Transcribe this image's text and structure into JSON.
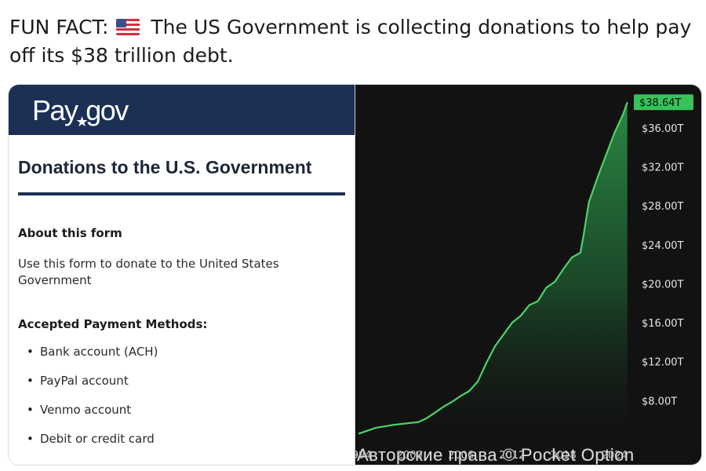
{
  "post": {
    "prefix": "FUN FACT:",
    "flag_icon": "us-flag-icon",
    "message": "The US Government is collecting donations to help pay off its $38 trillion debt."
  },
  "payform": {
    "brand_text": "Pay",
    "brand_text_2": "gov",
    "title": "Donations to the U.S. Government",
    "about_heading": "About this form",
    "about_text": "Use this form to donate to the United States Government",
    "methods_heading": "Accepted Payment Methods:",
    "methods": [
      "Bank account (ACH)",
      "PayPal account",
      "Venmo account",
      "Debit or credit card"
    ],
    "colors": {
      "brand_bar": "#1c3056"
    }
  },
  "watermark": "Авторские права © Pocket Option",
  "chart_data": {
    "type": "area",
    "x_tick_labels": [
      "1994",
      "2000",
      "2006",
      "2012",
      "2018",
      "2024"
    ],
    "y_tick_labels": [
      "$8.00T",
      "$12.00T",
      "$16.00T",
      "$20.00T",
      "$24.00T",
      "$28.00T",
      "$32.00T",
      "$36.00T"
    ],
    "y_ticks": [
      8,
      12,
      16,
      20,
      24,
      28,
      32,
      36
    ],
    "current_value_label": "$38.64T",
    "ylim": [
      4,
      39.3
    ],
    "xlim": [
      1994,
      2025.8
    ],
    "series": [
      {
        "x": [
          1994,
          1996,
          1998,
          2000,
          2001,
          2002,
          2003,
          2004,
          2005,
          2006,
          2007,
          2008,
          2009,
          2010,
          2011,
          2012,
          2013,
          2014,
          2015,
          2016,
          2017,
          2018,
          2019,
          2020,
          2020.4,
          2021,
          2022,
          2023,
          2024,
          2025,
          2025.5
        ],
        "values": [
          4.6,
          5.2,
          5.5,
          5.7,
          5.8,
          6.2,
          6.8,
          7.4,
          7.9,
          8.5,
          9.0,
          10.0,
          11.9,
          13.6,
          14.8,
          16.0,
          16.7,
          17.8,
          18.2,
          19.6,
          20.2,
          21.5,
          22.7,
          23.2,
          25.1,
          28.4,
          30.9,
          33.2,
          35.5,
          37.4,
          38.64
        ]
      }
    ],
    "colors": {
      "line": "#4bd467",
      "badge": "#39c25a",
      "background": "#121212"
    }
  }
}
